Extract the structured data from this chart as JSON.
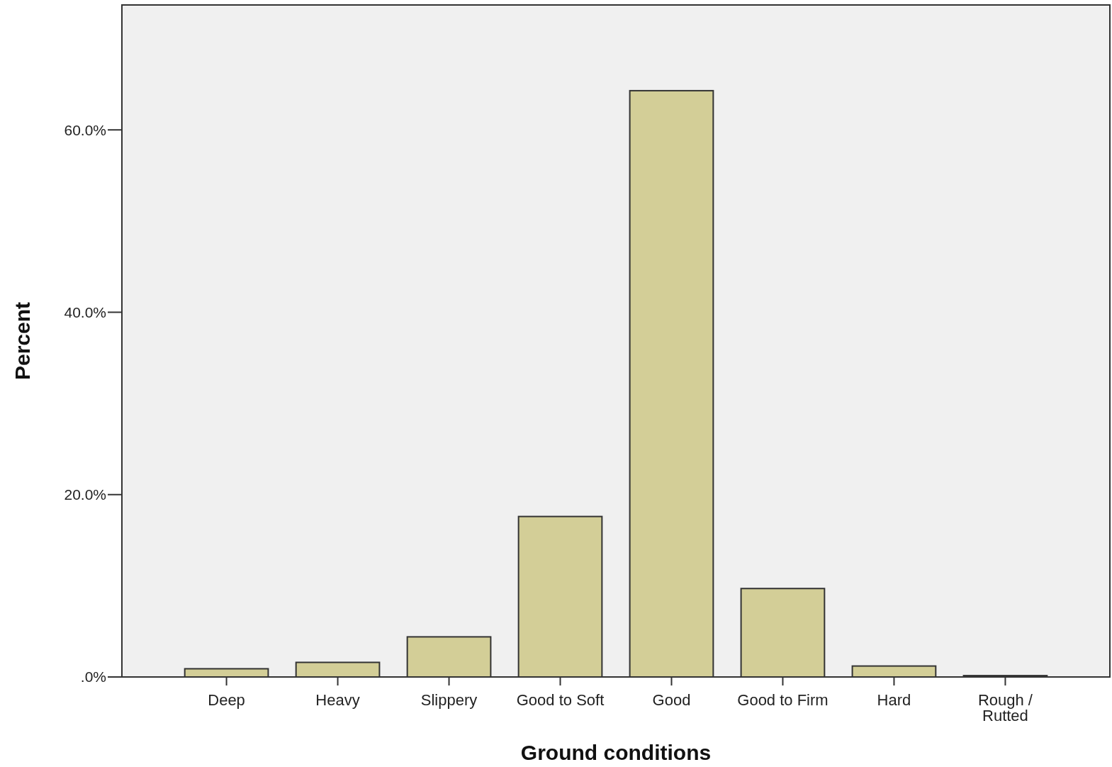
{
  "chart_data": {
    "type": "bar",
    "xlabel": "Ground conditions",
    "ylabel": "Percent",
    "categories": [
      "Deep",
      "Heavy",
      "Slippery",
      "Good to Soft",
      "Good",
      "Good to Firm",
      "Hard",
      "Rough / Rutted"
    ],
    "values": [
      0.9,
      1.6,
      4.4,
      17.6,
      64.3,
      9.7,
      1.2,
      0.15
    ],
    "color": "#d3ce97",
    "ylim": [
      0,
      73.7
    ],
    "yticks": [
      {
        "value": 0,
        "label": ".0%"
      },
      {
        "value": 20,
        "label": "20.0%"
      },
      {
        "value": 40,
        "label": "40.0%"
      },
      {
        "value": 60,
        "label": "60.0%"
      }
    ],
    "grid": false
  }
}
